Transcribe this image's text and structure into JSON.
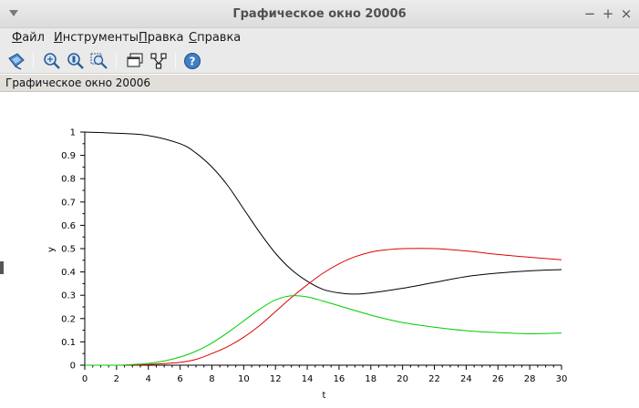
{
  "window": {
    "title": "Графическое окно 20006",
    "controls": {
      "minimize": "−",
      "maximize": "+",
      "close": "×"
    }
  },
  "menu": [
    {
      "label": "Файл",
      "mnemonic": "Ф",
      "rest": "айл"
    },
    {
      "label": "Инструменты",
      "mnemonic": "И",
      "rest": "нструменты"
    },
    {
      "label": "Правка",
      "mnemonic": "П",
      "rest": "равка"
    },
    {
      "label": "Справка",
      "mnemonic": "С",
      "rest": "правка"
    }
  ],
  "toolbar": {
    "icons": [
      "datatip-icon",
      "zoom-icon",
      "zoom-original-icon",
      "zoom-area-icon",
      "figure-window-icon",
      "rotate-icon",
      "help-icon"
    ]
  },
  "figure_label": "Графическое окно 20006",
  "colors": {
    "black_curve": "#000000",
    "red_curve": "#e00000",
    "green_curve": "#00cc00"
  },
  "chart_data": {
    "type": "line",
    "xlabel": "t",
    "ylabel": "y",
    "xlim": [
      0,
      30
    ],
    "ylim": [
      0,
      1
    ],
    "x_ticks": [
      "0",
      "2",
      "4",
      "6",
      "8",
      "10",
      "12",
      "14",
      "16",
      "18",
      "20",
      "22",
      "24",
      "26",
      "28",
      "30"
    ],
    "y_ticks": [
      "0",
      "0.1",
      "0.2",
      "0.3",
      "0.4",
      "0.5",
      "0.6",
      "0.7",
      "0.8",
      "0.9",
      "1"
    ],
    "grid": false,
    "series": [
      {
        "color": "#000000",
        "x": [
          0,
          2,
          4,
          6,
          7,
          8,
          9,
          10,
          11,
          12,
          13,
          14,
          15,
          16,
          17,
          18,
          20,
          22,
          24,
          26,
          28,
          30
        ],
        "y": [
          1.0,
          0.995,
          0.985,
          0.95,
          0.91,
          0.85,
          0.77,
          0.67,
          0.57,
          0.48,
          0.41,
          0.36,
          0.325,
          0.31,
          0.305,
          0.31,
          0.33,
          0.355,
          0.38,
          0.395,
          0.405,
          0.41
        ]
      },
      {
        "color": "#e00000",
        "x": [
          0,
          2,
          4,
          6,
          7,
          8,
          9,
          10,
          11,
          12,
          13,
          14,
          15,
          16,
          17,
          18,
          19,
          20,
          22,
          24,
          26,
          28,
          30
        ],
        "y": [
          0.0,
          0.0,
          0.003,
          0.012,
          0.025,
          0.05,
          0.08,
          0.12,
          0.17,
          0.23,
          0.29,
          0.345,
          0.395,
          0.435,
          0.465,
          0.485,
          0.495,
          0.5,
          0.5,
          0.49,
          0.475,
          0.463,
          0.452
        ]
      },
      {
        "color": "#00cc00",
        "x": [
          0,
          2,
          3,
          4,
          5,
          6,
          7,
          8,
          9,
          10,
          11,
          12,
          13,
          14,
          15,
          16,
          18,
          20,
          22,
          24,
          26,
          28,
          30
        ],
        "y": [
          0.0,
          0.0,
          0.003,
          0.008,
          0.018,
          0.035,
          0.06,
          0.095,
          0.14,
          0.19,
          0.24,
          0.28,
          0.298,
          0.293,
          0.275,
          0.255,
          0.215,
          0.183,
          0.163,
          0.148,
          0.14,
          0.135,
          0.138
        ]
      }
    ]
  }
}
